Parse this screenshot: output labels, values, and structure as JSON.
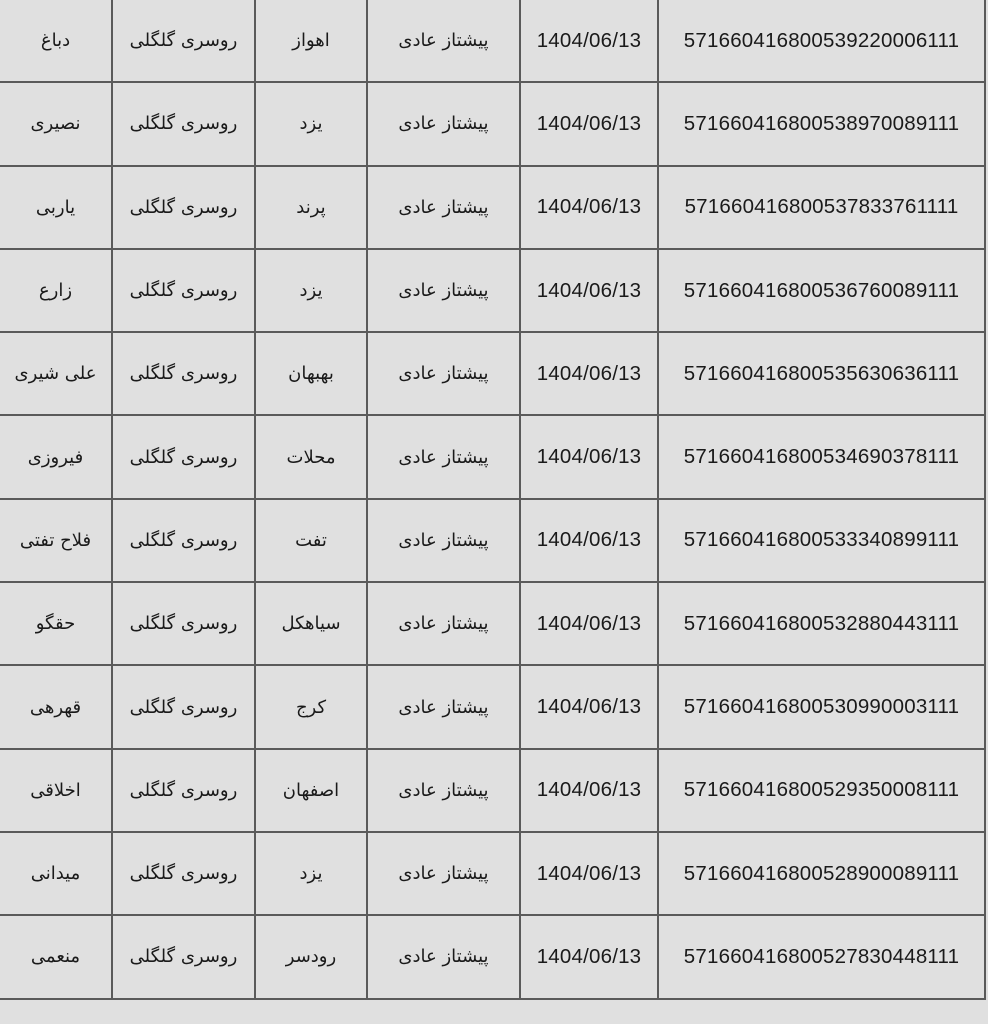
{
  "table": {
    "rows": [
      {
        "name": "دباغ",
        "product": "روسری گلگلی",
        "city": "اهواز",
        "service": "پیشتاز عادی",
        "date": "1404/06/13",
        "tracking": "571660416800539220006111"
      },
      {
        "name": "نصیری",
        "product": "روسری گلگلی",
        "city": "یزد",
        "service": "پیشتاز عادی",
        "date": "1404/06/13",
        "tracking": "571660416800538970089111"
      },
      {
        "name": "یاربی",
        "product": "روسری گلگلی",
        "city": "پرند",
        "service": "پیشتاز عادی",
        "date": "1404/06/13",
        "tracking": "571660416800537833761111"
      },
      {
        "name": "زارع",
        "product": "روسری گلگلی",
        "city": "یزد",
        "service": "پیشتاز عادی",
        "date": "1404/06/13",
        "tracking": "571660416800536760089111"
      },
      {
        "name": "علی شیری",
        "product": "روسری گلگلی",
        "city": "بهبهان",
        "service": "پیشتاز عادی",
        "date": "1404/06/13",
        "tracking": "571660416800535630636111"
      },
      {
        "name": "فیروزی",
        "product": "روسری گلگلی",
        "city": "محلات",
        "service": "پیشتاز عادی",
        "date": "1404/06/13",
        "tracking": "571660416800534690378111"
      },
      {
        "name": "فلاح تفتی",
        "product": "روسری گلگلی",
        "city": "تفت",
        "service": "پیشتاز عادی",
        "date": "1404/06/13",
        "tracking": "571660416800533340899111"
      },
      {
        "name": "حقگو",
        "product": "روسری گلگلی",
        "city": "سیاهکل",
        "service": "پیشتاز عادی",
        "date": "1404/06/13",
        "tracking": "571660416800532880443111"
      },
      {
        "name": "قهرهی",
        "product": "روسری گلگلی",
        "city": "کرج",
        "service": "پیشتاز عادی",
        "date": "1404/06/13",
        "tracking": "571660416800530990003111"
      },
      {
        "name": "اخلاقی",
        "product": "روسری گلگلی",
        "city": "اصفهان",
        "service": "پیشتاز عادی",
        "date": "1404/06/13",
        "tracking": "571660416800529350008111"
      },
      {
        "name": "میدانی",
        "product": "روسری گلگلی",
        "city": "یزد",
        "service": "پیشتاز عادی",
        "date": "1404/06/13",
        "tracking": "571660416800528900089111"
      },
      {
        "name": "منعمی",
        "product": "روسری گلگلی",
        "city": "رودسر",
        "service": "پیشتاز عادی",
        "date": "1404/06/13",
        "tracking": "571660416800527830448111"
      }
    ]
  }
}
